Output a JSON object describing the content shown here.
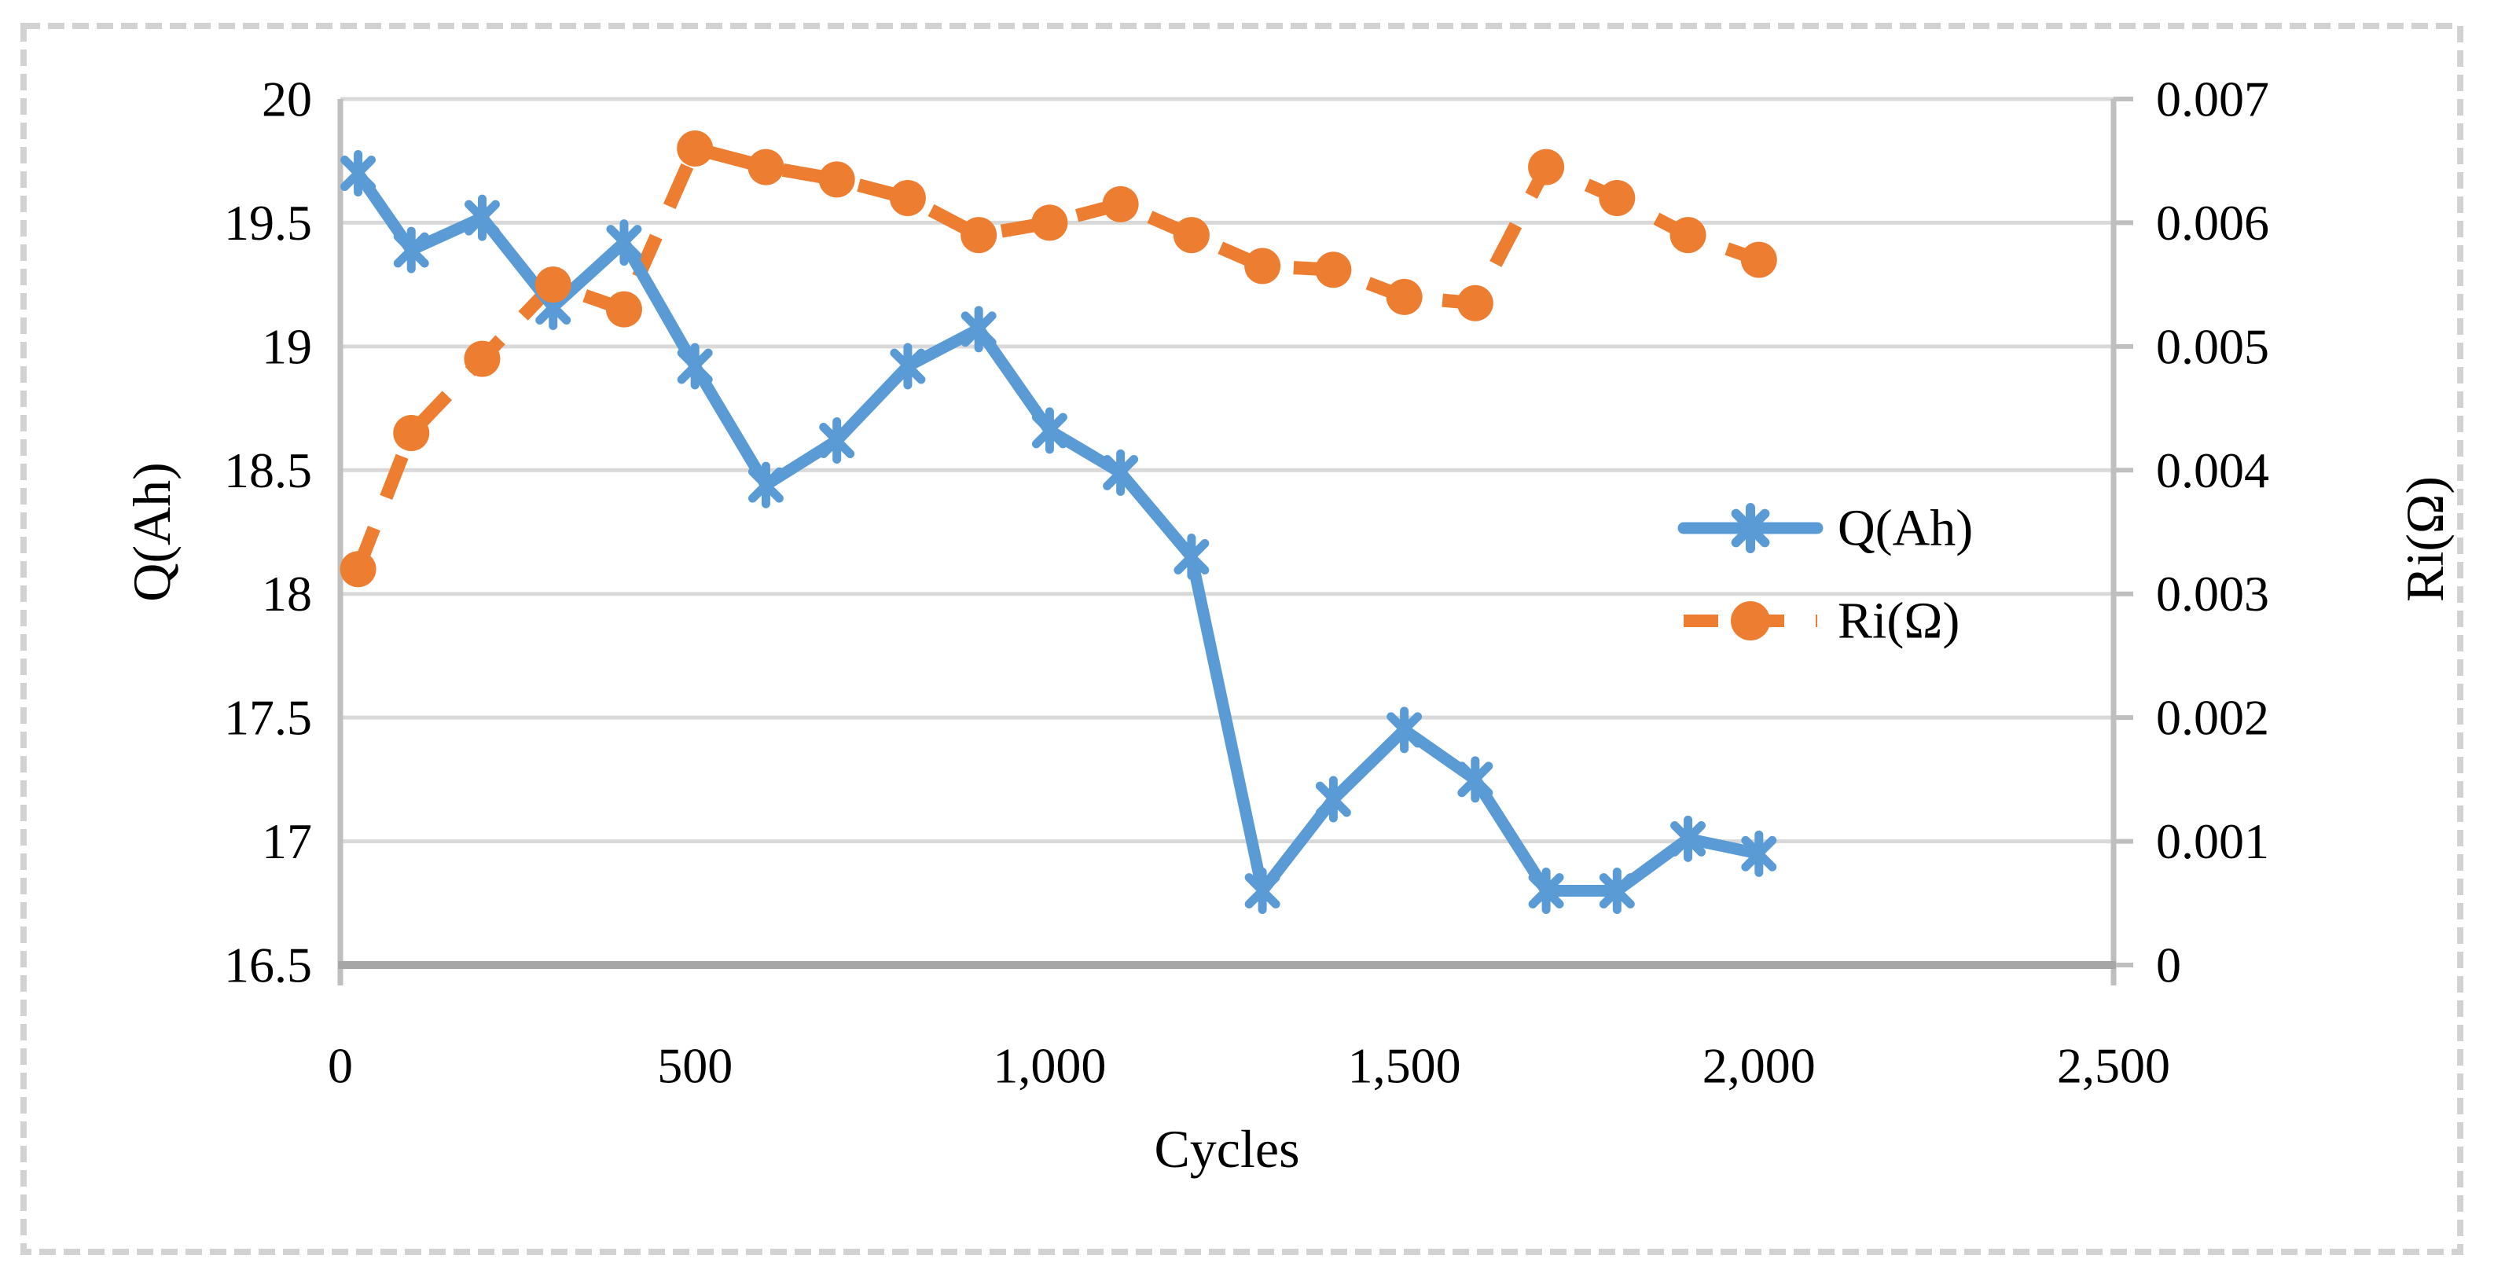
{
  "figure": {
    "left_axis_title": "Q(Ah)",
    "right_axis_title": "Ri(Ω)",
    "x_axis_title": "Cycles"
  },
  "legend": {
    "position": "inside-right",
    "entries": [
      {
        "label": "Q(Ah)",
        "marker": "asterisk-marker-icon",
        "line": "solid"
      },
      {
        "label": "Ri(Ω)",
        "marker": "circle-marker-icon",
        "line": "dashed"
      }
    ]
  },
  "colors": {
    "q_series": "#5B9BD5",
    "ri_series": "#ED7D31",
    "gridline": "#D9D9D9",
    "axis_line": "#BFBFBF",
    "x_axis_line": "#A6A6A6",
    "figure_border": "#D2D2D2",
    "text": "#000000"
  },
  "chart_data": {
    "type": "line",
    "title": "",
    "xlabel": "Cycles",
    "ylabel_left": "Q(Ah)",
    "ylabel_right": "Ri(Ω)",
    "grid": true,
    "legend_position": "inside-right",
    "x_range": [
      0,
      2500
    ],
    "left_range": [
      16.5,
      20
    ],
    "right_range": [
      0,
      0.007
    ],
    "x_ticks": [
      0,
      500,
      1000,
      1500,
      2000,
      2500
    ],
    "x_tick_labels": [
      "0",
      "500",
      "1,000",
      "1,500",
      "2,000",
      "2,500"
    ],
    "left_ticks": [
      16.5,
      17,
      17.5,
      18,
      18.5,
      19,
      19.5,
      20
    ],
    "left_tick_labels": [
      "16.5",
      "17",
      "17.5",
      "18",
      "18.5",
      "19",
      "19.5",
      "20"
    ],
    "right_ticks": [
      0,
      0.001,
      0.002,
      0.003,
      0.004,
      0.005,
      0.006,
      0.007
    ],
    "right_tick_labels": [
      "0",
      "0.001",
      "0.002",
      "0.003",
      "0.004",
      "0.005",
      "0.006",
      "0.007"
    ],
    "x": [
      25,
      100,
      200,
      300,
      400,
      500,
      600,
      700,
      800,
      900,
      1000,
      1100,
      1200,
      1300,
      1400,
      1500,
      1600,
      1700,
      1800,
      1900,
      2000
    ],
    "series": [
      {
        "name": "Q(Ah)",
        "axis": "left",
        "line": "solid",
        "marker": "asterisk",
        "values": [
          19.7,
          19.39,
          19.52,
          19.16,
          19.42,
          18.92,
          18.44,
          18.62,
          18.92,
          19.07,
          18.66,
          18.49,
          18.15,
          16.8,
          17.17,
          17.45,
          17.25,
          16.8,
          16.8,
          17.01,
          16.95
        ]
      },
      {
        "name": "Ri(Ω)",
        "axis": "right",
        "line": "dashed",
        "marker": "circle",
        "values": [
          0.0032,
          0.0043,
          0.0049,
          0.0055,
          0.0053,
          0.0066,
          0.00645,
          0.00635,
          0.0062,
          0.0059,
          0.006,
          0.00615,
          0.0059,
          0.00565,
          0.00562,
          0.0054,
          0.00535,
          0.00645,
          0.0062,
          0.0059,
          0.0057
        ]
      }
    ]
  }
}
